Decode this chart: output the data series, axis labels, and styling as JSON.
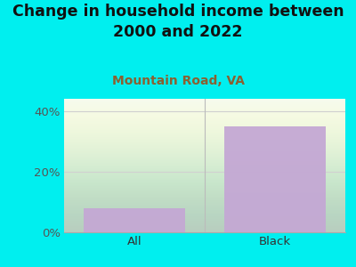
{
  "title": "Change in household income between\n2000 and 2022",
  "subtitle": "Mountain Road, VA",
  "categories": [
    "All",
    "Black"
  ],
  "values": [
    8,
    35
  ],
  "bar_color": "#c4a8d4",
  "background_color": "#00EFEF",
  "yticks": [
    0,
    20,
    40
  ],
  "ylim": [
    0,
    44
  ],
  "title_fontsize": 12.5,
  "subtitle_fontsize": 10,
  "tick_label_fontsize": 9.5,
  "title_color": "#111111",
  "subtitle_color": "#8B6030",
  "yticklabel_color": "#555555",
  "xticklabel_color": "#333333",
  "plot_bg_color_top": "#f5faf0",
  "plot_bg_color_bottom": "#e8f4e0",
  "divider_color": "#bbbbbb",
  "grid_color": "#d0d0d0"
}
